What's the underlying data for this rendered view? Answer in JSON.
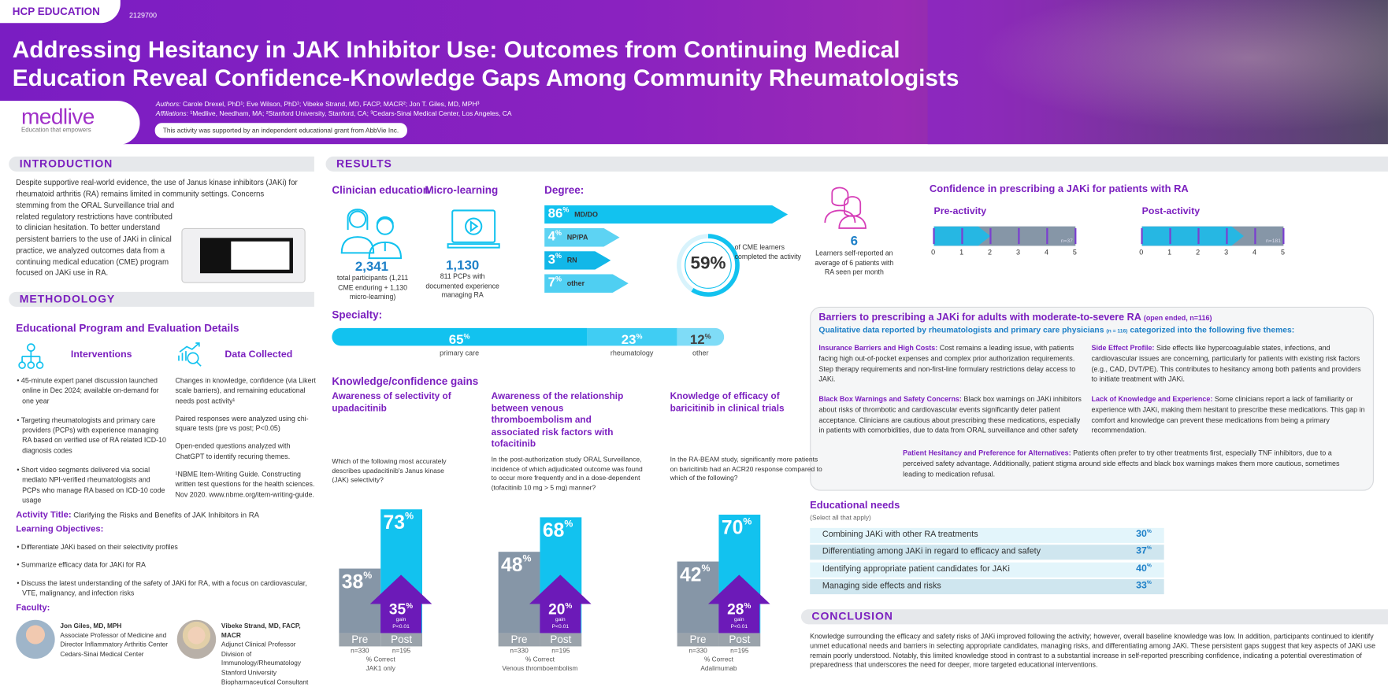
{
  "header": {
    "tag": "HCP EDUCATION",
    "code": "2129700",
    "title_line1": "Addressing Hesitancy in JAK Inhibitor Use: Outcomes from Continuing Medical",
    "title_line2": "Education Reveal Confidence-Knowledge Gaps Among Community Rheumatologists",
    "authors_label": "Authors:",
    "authors": "Carole Drexel, PhD¹; Eve Wilson, PhD¹; Vibeke Strand, MD, FACP, MACR²; Jon T. Giles, MD, MPH³",
    "affiliations_label": "Affiliations:",
    "affiliations": "¹Medlive, Needham, MA; ²Stanford University, Stanford, CA; ³Cedars-Sinai Medical Center, Los Angeles, CA",
    "grant": "This activity was supported by an independent educational grant from AbbVie Inc.",
    "logo": "medlive",
    "logo_tagline": "Education that empowers"
  },
  "intro": {
    "heading": "INTRODUCTION",
    "text_top": "Despite supportive real-world evidence, the use of Janus kinase inhibitors (JAKi) for rheumatoid arthritis (RA) remains limited in community settings. Concerns",
    "text_side": "stemming from the ORAL Surveillance trial and related regulatory restrictions have contributed to clinician hesitation. To better understand persistent barriers to the use of JAKi in clinical practice, we analyzed outcomes data from a continuing medical education (CME) program focused on JAKi use in RA."
  },
  "methodology": {
    "heading": "METHODOLOGY",
    "subheading": "Educational Program and Evaluation Details",
    "interventions_label": "Interventions",
    "data_label": "Data Collected",
    "interventions": [
      "• 45-minute expert panel discussion launched online in Dec 2024; available on-demand for one year",
      "• Targeting rheumatologists and primary care providers (PCPs) with experience managing RA based on verified use of RA related ICD-10 diagnosis codes",
      "• Short video segments delivered via social mediato NPI-verified rheumatologists and PCPs who manage RA based on ICD-10 code usage"
    ],
    "data_collected": [
      "Changes in knowledge, confidence (via Likert scale barriers), and remaining educational needs post activity¹",
      "Paired responses were analyzed using chi-square tests (pre vs post; P<0.05)",
      "Open-ended questions analyzed with ChatGPT to identify recuring themes.",
      "¹NBME Item-Writing Guide. Constructing written test questions for the health sciences. Nov 2020. www.nbme.org/item-writing-guide."
    ],
    "activity_label": "Activity Title:",
    "activity_title": "Clarifying the Risks and Benefits of JAK Inhibitors in RA",
    "objectives_label": "Learning Objectives:",
    "objectives": [
      "• Differentiate JAKi based on their selectivity profiles",
      "• Summarize efficacy data for JAKi for RA",
      "• Discuss the latest understanding of the safety of JAKi for RA, with a focus on cardiovascular, VTE, malignancy, and infection risks"
    ],
    "faculty_label": "Faculty:",
    "faculty": [
      {
        "name": "Jon Giles, MD, MPH",
        "desc": "Associate Professor of Medicine and Director Inflammatory Arthritis Center Cedars-Sinai Medical Center"
      },
      {
        "name": "Vibeke Strand, MD, FACP, MACR",
        "desc": "Adjunct Clinical Professor Division of Immunology/Rheumatology Stanford University Biopharmaceutical Consultant"
      }
    ]
  },
  "results": {
    "heading": "RESULTS",
    "clinician": {
      "label": "Clinician education",
      "value": "2,341",
      "desc": "total participants (1,211 CME enduring + 1,130 micro-learning)"
    },
    "micro": {
      "label": "Micro-learning",
      "value": "1,130",
      "desc": "811 PCPs with documented experience managing RA"
    },
    "degree": {
      "label": "Degree:",
      "items": [
        {
          "pct": 86,
          "label": "MD/DO"
        },
        {
          "pct": 4,
          "label": "NP/PA"
        },
        {
          "pct": 3,
          "label": "RN"
        },
        {
          "pct": 7,
          "label": "other"
        }
      ]
    },
    "completion": {
      "value": "59%",
      "pct": 59,
      "desc": "of CME learners completed the activity"
    },
    "specialty": {
      "label": "Specialty:",
      "items": [
        {
          "pct": 65,
          "label": "primary care"
        },
        {
          "pct": 23,
          "label": "rheumatology"
        },
        {
          "pct": 12,
          "label": "other"
        }
      ]
    },
    "knowledge_heading": "Knowledge/confidence gains",
    "learners": {
      "value": "6",
      "desc": "Learners self-reported an average of 6 patients with RA seen per month"
    },
    "confidence": {
      "title": "Confidence in prescribing a JAKi for patients with RA",
      "pre": {
        "label": "Pre-activity",
        "value": 2,
        "n": "n=37"
      },
      "post": {
        "label": "Post-activity",
        "value": 3.6,
        "n": "n=181"
      },
      "axis": [
        "0",
        "1",
        "2",
        "3",
        "4",
        "5"
      ]
    }
  },
  "chart_data": [
    {
      "type": "bar",
      "title": "Awareness of selectivity of upadacitinib",
      "question": "Which of the following most accurately describes upadacitinib's Janus kinase (JAK) selectivity?",
      "categories": [
        "Pre",
        "Post"
      ],
      "values": [
        38,
        73
      ],
      "n": [
        "n=330",
        "n=195"
      ],
      "gain": "35%",
      "gain_label": "gain",
      "p": "P<0.01",
      "ylabel": "% Correct",
      "xlabel": "JAK1 only"
    },
    {
      "type": "bar",
      "title": "Awareness of the relationship between venous thromboembolism and associated risk factors with tofacitinib",
      "question": "In the post-authorization study ORAL Surveillance, incidence of which adjudicated outcome was found to occur more frequently and in a dose-dependent (tofacitinib 10 mg > 5 mg) manner?",
      "categories": [
        "Pre",
        "Post"
      ],
      "values": [
        48,
        68
      ],
      "n": [
        "n=330",
        "n=195"
      ],
      "gain": "20%",
      "gain_label": "gain",
      "p": "P<0.01",
      "ylabel": "% Correct",
      "xlabel": "Venous thromboembolism"
    },
    {
      "type": "bar",
      "title": "Knowledge of efficacy of baricitinib in clinical trials",
      "question": "In the RA-BEAM study, significantly more patients on baricitinib had an ACR20 response compared to which of the following?",
      "categories": [
        "Pre",
        "Post"
      ],
      "values": [
        42,
        70
      ],
      "n": [
        "n=330",
        "n=195"
      ],
      "gain": "28%",
      "gain_label": "gain",
      "p": "P<0.01",
      "ylabel": "% Correct",
      "xlabel": "Adalimumab"
    }
  ],
  "barriers": {
    "title": "Barriers to prescribing a JAKi for adults with moderate-to-severe RA",
    "title_note": "(open ended, n=116)",
    "subtitle": "Qualitative data reported by rheumatologists and primary care physicians",
    "subtitle_n": "(n = 116)",
    "subtitle_end": "categorized into the following five themes:",
    "items": [
      {
        "head": "Insurance Barriers and High Costs:",
        "text": " Cost remains a leading issue, with patients facing high out-of-pocket expenses and complex prior authorization requirements. Step therapy requirements and non-first-line formulary restrictions delay access to JAKi."
      },
      {
        "head": "Side Effect Profile:",
        "text": " Side effects like hypercoagulable states, infections, and cardiovascular issues are concerning, particularly for patients with existing risk factors (e.g., CAD, DVT/PE). This contributes to hesitancy among both patients and providers to initiate treatment with JAKi."
      },
      {
        "head": "Black Box Warnings and Safety Concerns:",
        "text": " Black box warnings on JAKi inhibitors about risks of thrombotic and cardiovascular events significantly deter patient acceptance. Clinicians are cautious about prescribing these medications, especially in patients with comorbidities, due to data from ORAL surveillance and other safety"
      },
      {
        "head": "Lack of Knowledge and Experience:",
        "text": " Some clinicians report a lack of familiarity or experience with JAKi, making them hesitant to prescribe these medications. This gap in comfort and knowledge can prevent these medications from being a primary recommendation."
      },
      {
        "head": "Patient Hesitancy and Preference for Alternatives:",
        "text": " Patients often prefer to try other treatments first, especially TNF inhibitors, due to a perceived safety advantage. Additionally, patient stigma around side effects and black box warnings makes them more cautious, sometimes leading to medication refusal."
      }
    ]
  },
  "needs": {
    "title": "Educational needs",
    "note": "(Select all that apply)",
    "items": [
      {
        "label": "Combining JAKi with other RA treatments",
        "pct": "30"
      },
      {
        "label": "Differentiating among JAKi in regard to efficacy and safety",
        "pct": "37"
      },
      {
        "label": "Identifying appropriate patient candidates for JAKi",
        "pct": "40"
      },
      {
        "label": "Managing side effects and risks",
        "pct": "33"
      }
    ],
    "pct_sign": "%"
  },
  "conclusion": {
    "heading": "CONCLUSION",
    "text": "Knowledge surrounding the efficacy and safety risks of JAKi improved following the activity; however, overall baseline knowledge was low. In addition, participants continued to identify unmet educational needs and barriers in selecting appropriate candidates, managing risks, and differentiating among JAKi. These persistent gaps suggest that key aspects of JAKi use remain poorly understood. Notably, this limited knowledge stood in contrast to a substantial increase in self-reported prescribing confidence, indicating a potential overestimation of preparedness that underscores the need for deeper, more targeted educational interventions."
  },
  "colors": {
    "purple": "#7b1fbf",
    "cyan": "#12c2ef",
    "gray": "#8696a7",
    "gain": "#6c1ab8"
  }
}
